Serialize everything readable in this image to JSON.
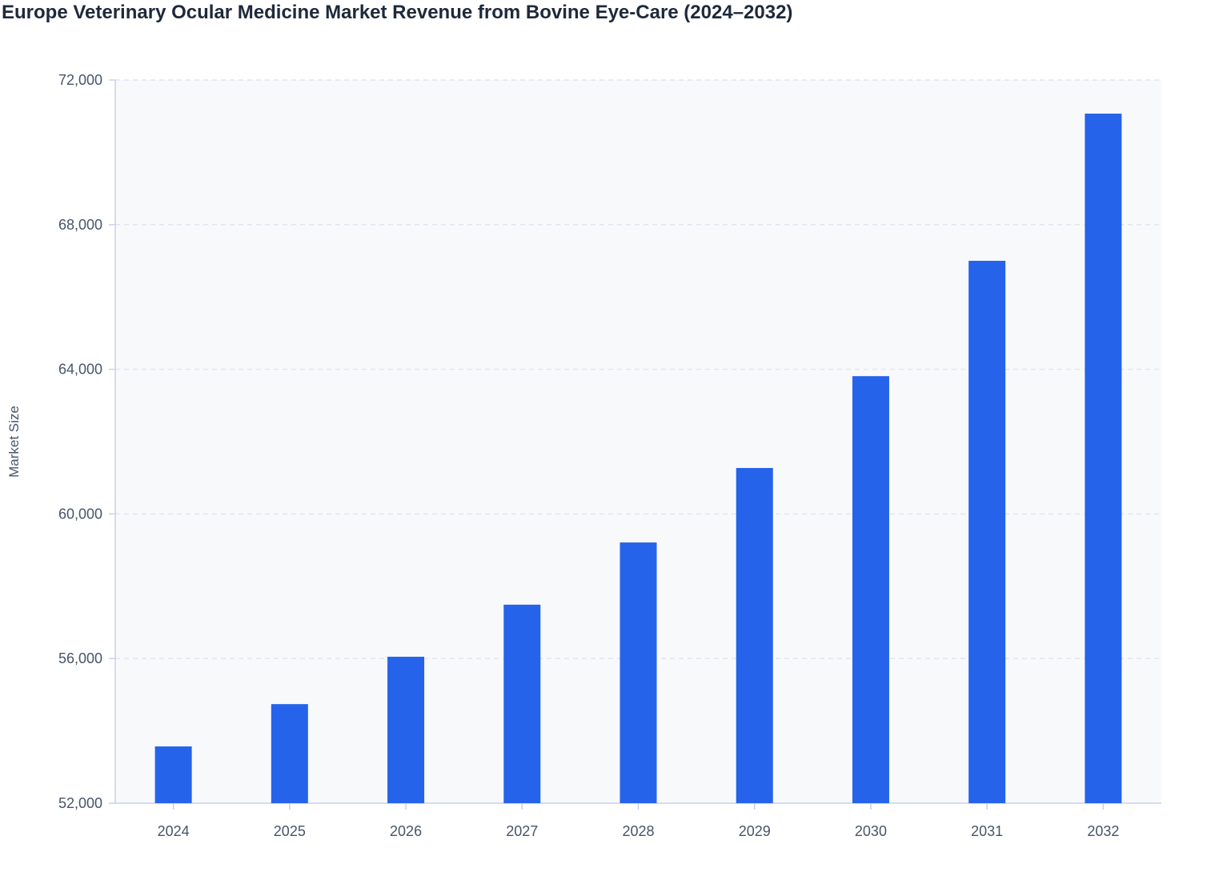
{
  "chart_data": {
    "type": "bar",
    "title": "Europe Veterinary Ocular Medicine Market Revenue from Bovine Eye-Care (2024–2032)",
    "xlabel": "",
    "ylabel": "Market Size",
    "categories": [
      "2024",
      "2025",
      "2026",
      "2027",
      "2028",
      "2029",
      "2030",
      "2031",
      "2032"
    ],
    "values": [
      53570,
      54740,
      56050,
      57490,
      59210,
      61270,
      63810,
      67000,
      71070
    ],
    "ylim": [
      52000,
      72000
    ],
    "yticks": [
      52000,
      56000,
      60000,
      64000,
      68000,
      72000
    ],
    "ytick_labels": [
      "52,000",
      "56,000",
      "60,000",
      "64,000",
      "68,000",
      "72,000"
    ],
    "grid": true,
    "legend": "none",
    "colors": {
      "bar": "#2563eb",
      "plot_bg": "#f8f9fb",
      "grid": "#e2e5ee",
      "axis": "#c7d0f0"
    }
  }
}
